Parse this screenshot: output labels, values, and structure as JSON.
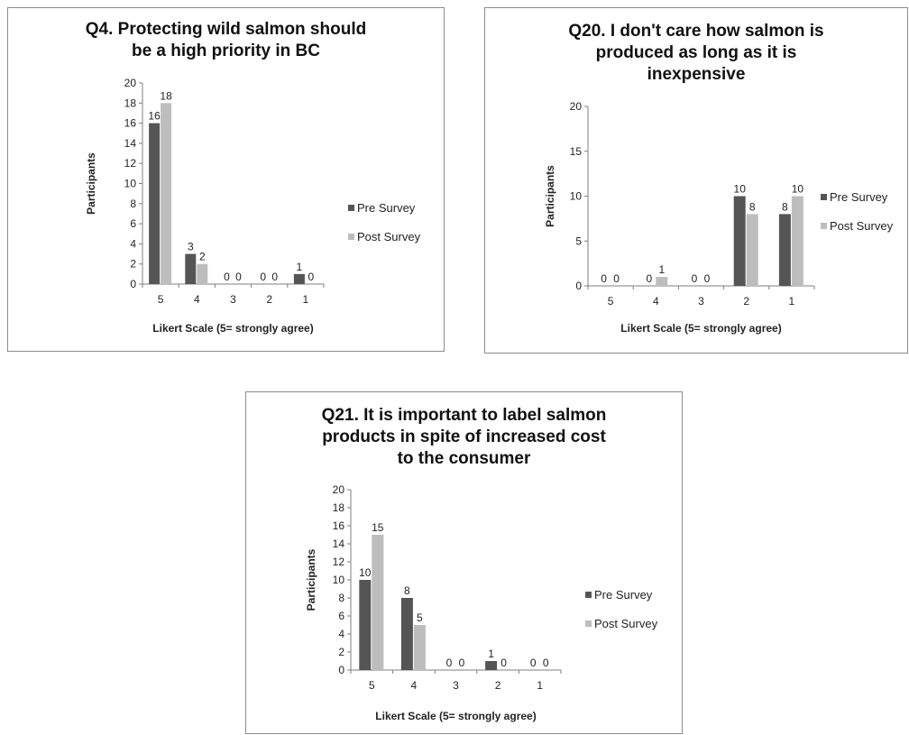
{
  "colors": {
    "pre": "#555555",
    "post": "#bdbdbd",
    "axis": "#7f7f7f",
    "text": "#222222"
  },
  "chart_data": [
    {
      "type": "bar",
      "title_lines": [
        "Q4.  Protecting wild salmon should",
        "be a high priority in BC"
      ],
      "categories": [
        "5",
        "4",
        "3",
        "2",
        "1"
      ],
      "series": [
        {
          "name": "Pre Survey",
          "values": [
            16,
            3,
            0,
            0,
            1
          ]
        },
        {
          "name": "Post Survey",
          "values": [
            18,
            2,
            0,
            0,
            0
          ]
        }
      ],
      "xlabel": "Likert Scale (5= strongly agree)",
      "ylabel": "Participants",
      "ylim": [
        0,
        20
      ],
      "yticks": [
        "0",
        "2",
        "4",
        "6",
        "8",
        "10",
        "12",
        "14",
        "16",
        "18",
        "20"
      ],
      "grid": false,
      "legend_position": "right"
    },
    {
      "type": "bar",
      "title_lines": [
        "Q20. I don't care how salmon is",
        "produced as long as it is",
        "inexpensive"
      ],
      "categories": [
        "5",
        "4",
        "3",
        "2",
        "1"
      ],
      "series": [
        {
          "name": "Pre Survey",
          "values": [
            0,
            0,
            0,
            10,
            8
          ]
        },
        {
          "name": "Post Survey",
          "values": [
            0,
            1,
            0,
            8,
            10
          ]
        }
      ],
      "xlabel": "Likert Scale (5= strongly agree)",
      "ylabel": "Participants",
      "ylim": [
        0,
        20
      ],
      "yticks": [
        "0",
        "5",
        "10",
        "15",
        "20"
      ],
      "grid": false,
      "legend_position": "right"
    },
    {
      "type": "bar",
      "title_lines": [
        "Q21. It is important to label salmon",
        "products in spite of increased cost",
        "to the consumer"
      ],
      "categories": [
        "5",
        "4",
        "3",
        "2",
        "1"
      ],
      "series": [
        {
          "name": "Pre Survey",
          "values": [
            10,
            8,
            0,
            1,
            0
          ]
        },
        {
          "name": "Post Survey",
          "values": [
            15,
            5,
            0,
            0,
            0
          ]
        }
      ],
      "xlabel": "Likert Scale (5= strongly agree)",
      "ylabel": "Participants",
      "ylim": [
        0,
        20
      ],
      "yticks": [
        "0",
        "2",
        "4",
        "6",
        "8",
        "10",
        "12",
        "14",
        "16",
        "18",
        "20"
      ],
      "grid": false,
      "legend_position": "right"
    }
  ]
}
